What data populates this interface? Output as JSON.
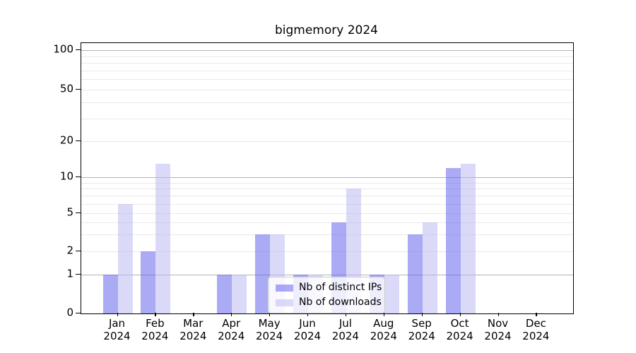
{
  "chart_data": {
    "type": "bar",
    "title": "bigmemory 2024",
    "categories": [
      "Jan\n2024",
      "Feb\n2024",
      "Mar\n2024",
      "Apr\n2024",
      "May\n2024",
      "Jun\n2024",
      "Jul\n2024",
      "Aug\n2024",
      "Sep\n2024",
      "Oct\n2024",
      "Nov\n2024",
      "Dec\n2024"
    ],
    "series": [
      {
        "name": "Nb of distinct IPs",
        "color": "rgba(85,85,235,0.5)",
        "values": [
          1,
          2,
          0,
          1,
          3,
          1,
          4,
          1,
          3,
          12,
          0,
          0
        ]
      },
      {
        "name": "Nb of downloads",
        "color": "rgba(181,181,241,0.5)",
        "values": [
          6,
          13,
          0,
          1,
          3,
          1,
          8,
          1,
          4,
          13,
          0,
          0
        ]
      }
    ],
    "yticks": [
      0,
      1,
      2,
      5,
      10,
      20,
      50,
      100
    ],
    "ylim": [
      0,
      112
    ],
    "scale": "log-above-1",
    "grid": {
      "major_lines": [
        1,
        10,
        100
      ],
      "minor_lines": [
        2,
        3,
        4,
        5,
        6,
        7,
        8,
        9,
        20,
        30,
        40,
        50,
        60,
        70,
        80,
        90
      ]
    },
    "legend_position": "lower-center",
    "colors": {
      "major_grid": "#b2b2b2",
      "minor_grid": "#e9e9e9",
      "axis": "#000000",
      "background": "#ffffff"
    }
  }
}
